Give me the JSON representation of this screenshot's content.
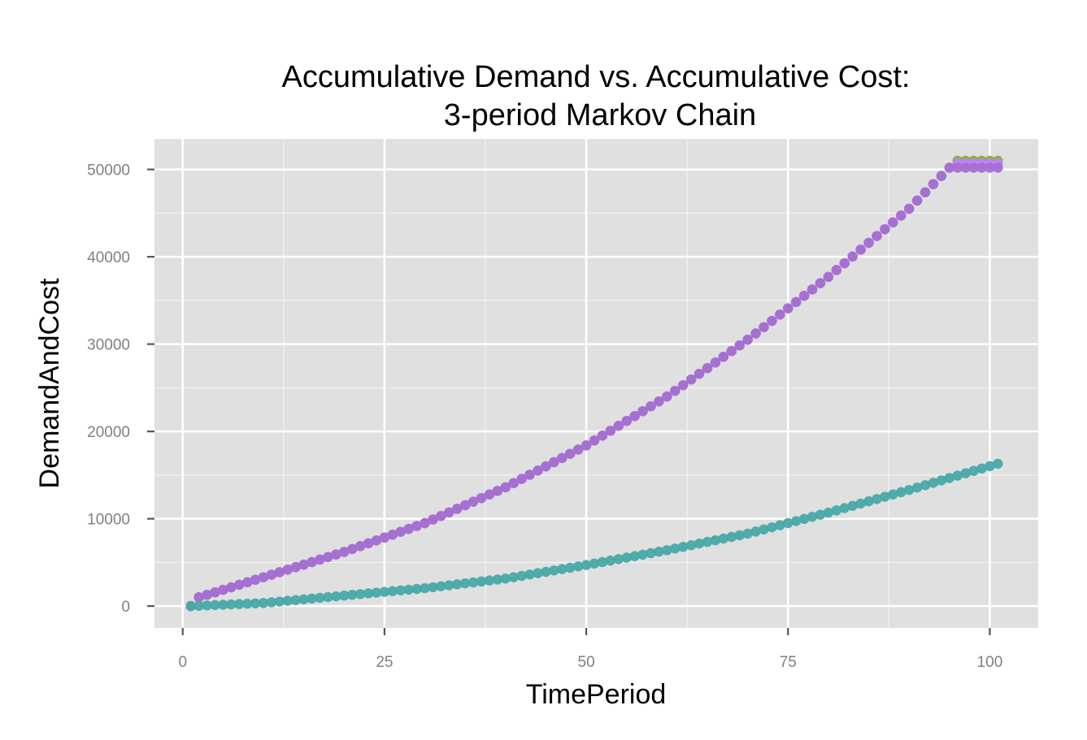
{
  "chart_data": {
    "type": "scatter",
    "title_lines": [
      "Accumulative Demand vs. Accumulative Cost:",
      "3-period Markov Chain"
    ],
    "xlabel": "TimePeriod",
    "ylabel": "DemandAndCost",
    "xlim": [
      -3.5,
      106
    ],
    "ylim": [
      -2500,
      53500
    ],
    "x_ticks": [
      0,
      25,
      50,
      75,
      100
    ],
    "y_ticks": [
      0,
      10000,
      20000,
      30000,
      40000,
      50000
    ],
    "x_tick_labels": [
      "0",
      "25",
      "50",
      "75",
      "100"
    ],
    "y_tick_labels": [
      "0",
      "10000",
      "20000",
      "30000",
      "40000",
      "50000"
    ],
    "grid": true,
    "legend": "none",
    "colors": {
      "panel": "#e0e0e0",
      "grid": "#ffffff",
      "tick": "#808080"
    },
    "series": [
      {
        "color": "#88b03a",
        "shape": "demand",
        "final_value": 51000
      },
      {
        "color": "#c080ff",
        "shape": "demand",
        "final_value": 50700
      },
      {
        "color": "#a46fd0",
        "shape": "demand",
        "final_value": 50200
      },
      {
        "color": "#48a8a8",
        "shape": "cost",
        "final_value": 16300
      }
    ],
    "x_range": [
      1,
      101
    ],
    "demand_curve_points": [
      [
        1,
        0
      ],
      [
        2,
        1000
      ],
      [
        10,
        3300
      ],
      [
        20,
        6200
      ],
      [
        30,
        9500
      ],
      [
        40,
        13600
      ],
      [
        50,
        18400
      ],
      [
        60,
        24000
      ],
      [
        70,
        30500
      ],
      [
        80,
        37700
      ],
      [
        90,
        45500
      ],
      [
        95,
        50200
      ]
    ],
    "cost_curve_points": [
      [
        1,
        0
      ],
      [
        10,
        350
      ],
      [
        20,
        1200
      ],
      [
        30,
        2050
      ],
      [
        40,
        3150
      ],
      [
        50,
        4700
      ],
      [
        60,
        6400
      ],
      [
        70,
        8300
      ],
      [
        80,
        10700
      ],
      [
        90,
        13300
      ],
      [
        101,
        16300
      ]
    ]
  }
}
